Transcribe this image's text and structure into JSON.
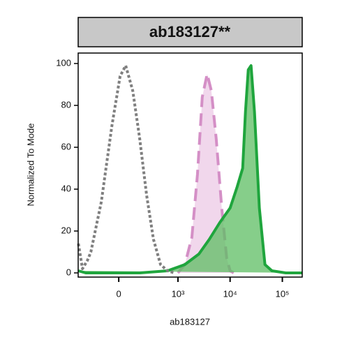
{
  "chart_data": {
    "type": "area",
    "title": "ab183127**",
    "x_label": "ab183127",
    "y_label": "Normalized To Mode",
    "xscale": "biexponential",
    "xlim": [
      -430,
      240000
    ],
    "ylim": [
      -2,
      105
    ],
    "xticks": [
      0,
      {
        "value": 1000,
        "label": "10³"
      },
      {
        "value": 10000,
        "label": "10⁴"
      },
      {
        "value": 100000,
        "label": "10⁵"
      }
    ],
    "yticks": [
      0,
      20,
      40,
      60,
      80,
      100
    ],
    "series": [
      {
        "name": "pink",
        "color": "#d48fc6",
        "fill": "#ecc9e5",
        "line_style": "dashed",
        "x": [
          999,
          1360,
          1850,
          2370,
          2930,
          3640,
          4380,
          5420,
          6930,
          8600,
          10000,
          11700
        ],
        "values": [
          0,
          4,
          17,
          47,
          84,
          95,
          87,
          64,
          31,
          7,
          1,
          0
        ]
      },
      {
        "name": "green",
        "color": "#1fa53d",
        "fill": "#5dbd63",
        "line_style": "solid",
        "x": [
          -426,
          -300,
          157,
          625,
          1360,
          2520,
          3990,
          6320,
          10000,
          13600,
          17400,
          19700,
          22300,
          25200,
          29300,
          36300,
          46400,
          63100,
          116000,
          237000
        ],
        "values": [
          1,
          0,
          0,
          1,
          4,
          9,
          16,
          24,
          31,
          41,
          50,
          77,
          97,
          99,
          77,
          31,
          4,
          1,
          0,
          0
        ]
      },
      {
        "name": "gray",
        "color": "#7f7f7f",
        "fill": "none",
        "line_style": "dotted",
        "x": [
          -426,
          -351,
          -275,
          -231,
          -125,
          -46,
          9,
          46,
          97,
          157,
          231,
          326,
          454,
          625,
          854
        ],
        "values": [
          14,
          2,
          6,
          10,
          34,
          70,
          94,
          99,
          87,
          64,
          37,
          16,
          4,
          1,
          0
        ]
      }
    ]
  }
}
